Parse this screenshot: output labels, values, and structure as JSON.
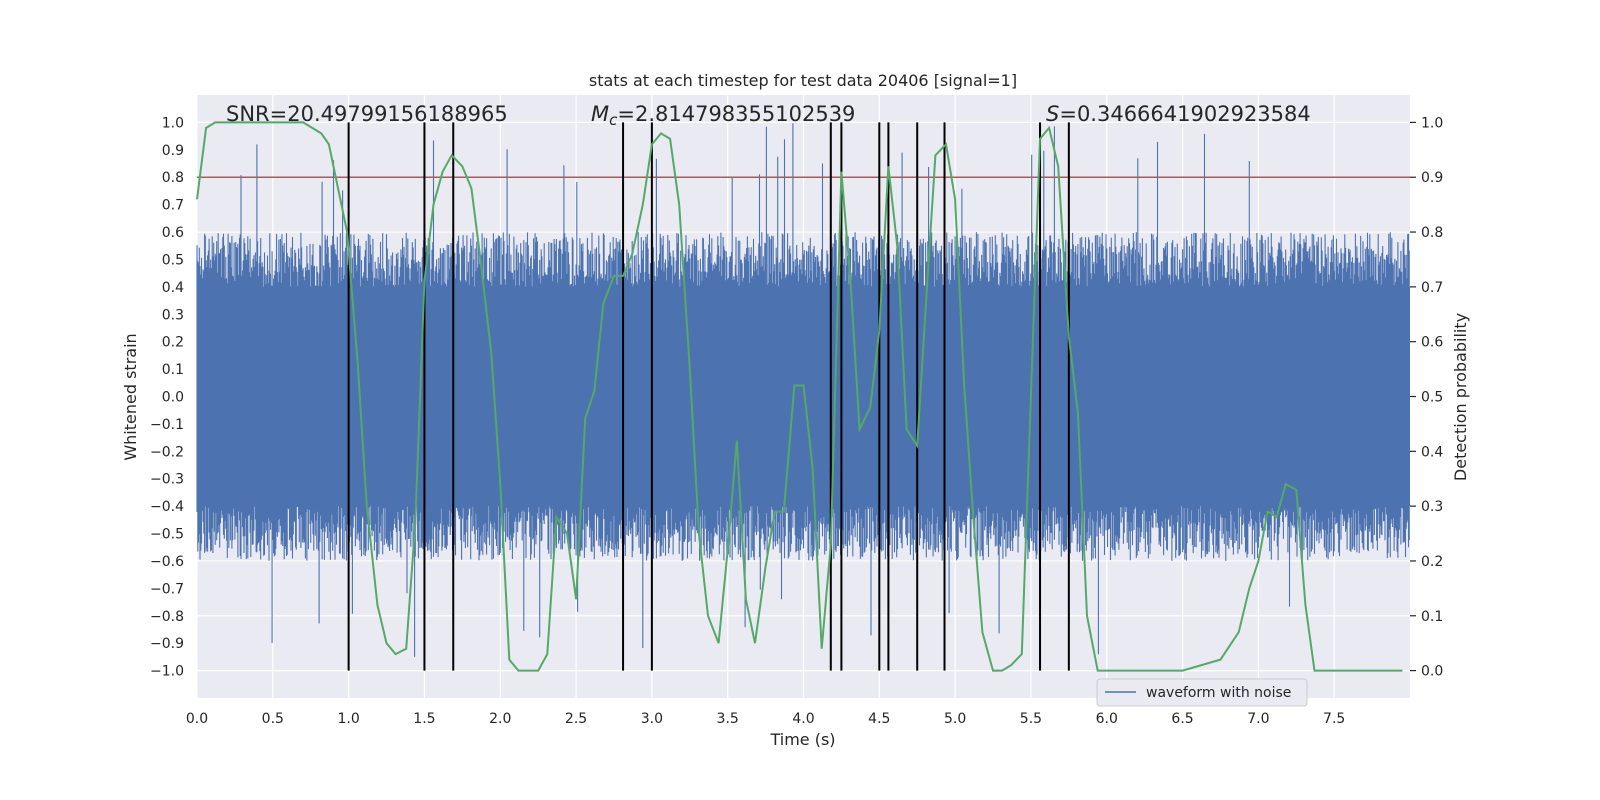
{
  "chart_data": {
    "type": "line",
    "title": "stats at each timestep for test data 20406 [signal=1]",
    "xlabel": "Time (s)",
    "ylabel_left": "Whitened strain",
    "ylabel_right": "Detection probability",
    "xlim": [
      0.0,
      8.0
    ],
    "ylim_left": [
      -1.1,
      1.1
    ],
    "ylim_right": [
      -0.05,
      1.05
    ],
    "x_ticks": [
      "0.0",
      "0.5",
      "1.0",
      "1.5",
      "2.0",
      "2.5",
      "3.0",
      "3.5",
      "4.0",
      "4.5",
      "5.0",
      "5.5",
      "6.0",
      "6.5",
      "7.0",
      "7.5"
    ],
    "y_ticks_left": [
      "1.0",
      "0.9",
      "0.8",
      "0.7",
      "0.6",
      "0.5",
      "0.4",
      "0.3",
      "0.2",
      "0.1",
      "0.0",
      "-0.1",
      "-0.2",
      "-0.3",
      "-0.4",
      "-0.5",
      "-0.6",
      "-0.7",
      "-0.8",
      "-0.9",
      "-1.0"
    ],
    "y_ticks_right": [
      "1.0",
      "0.9",
      "0.8",
      "0.7",
      "0.6",
      "0.5",
      "0.4",
      "0.3",
      "0.2",
      "0.1",
      "0.0"
    ],
    "grid": true,
    "annotations": {
      "snr": "SNR=20.49799156188965",
      "mc_symbol": "M",
      "mc_sub": "c",
      "mc_value": "=2.814798355102539",
      "s_symbol": "S",
      "s_value": "=0.3466641902923584"
    },
    "threshold": {
      "value_right": 0.9,
      "color": "#c44e52"
    },
    "vertical_lines": [
      1.0,
      1.5,
      1.69,
      2.81,
      3.0,
      4.18,
      4.25,
      4.5,
      4.56,
      4.75,
      4.93,
      5.56,
      5.75
    ],
    "vertical_line_range_left": [
      -1.0,
      1.0
    ],
    "waveform": {
      "name": "waveform with noise",
      "color": "#4c72b0",
      "dense_band": [
        -0.4,
        0.4
      ],
      "typical_peak": 0.6,
      "spike_max": 1.0,
      "spike_min": -0.98
    },
    "probability": {
      "color": "#55a868",
      "x": [
        0.0,
        0.06,
        0.12,
        0.2,
        0.3,
        0.4,
        0.5,
        0.6,
        0.7,
        0.76,
        0.82,
        0.87,
        0.93,
        0.99,
        1.06,
        1.12,
        1.19,
        1.25,
        1.31,
        1.38,
        1.44,
        1.5,
        1.56,
        1.62,
        1.68,
        1.75,
        1.81,
        1.87,
        1.94,
        2.0,
        2.06,
        2.12,
        2.25,
        2.31,
        2.37,
        2.44,
        2.5,
        2.56,
        2.62,
        2.68,
        2.75,
        2.81,
        2.87,
        2.94,
        3.0,
        3.06,
        3.12,
        3.18,
        3.25,
        3.31,
        3.37,
        3.44,
        3.5,
        3.56,
        3.62,
        3.68,
        3.75,
        3.81,
        3.87,
        3.94,
        4.0,
        4.06,
        4.12,
        4.18,
        4.25,
        4.31,
        4.37,
        4.44,
        4.5,
        4.56,
        4.62,
        4.68,
        4.75,
        4.81,
        4.87,
        4.94,
        5.0,
        5.06,
        5.12,
        5.18,
        5.25,
        5.31,
        5.37,
        5.44,
        5.5,
        5.56,
        5.62,
        5.68,
        5.75,
        5.81,
        5.87,
        5.94,
        6.0,
        6.06,
        6.12,
        6.25,
        6.5,
        6.75,
        6.87,
        6.94,
        7.0,
        7.06,
        7.12,
        7.18,
        7.25,
        7.31,
        7.37,
        7.44,
        7.5,
        7.56,
        7.62,
        7.75,
        7.87,
        7.95
      ],
      "y": [
        0.86,
        0.99,
        1.0,
        1.0,
        1.0,
        1.0,
        1.0,
        1.0,
        1.0,
        0.99,
        0.98,
        0.96,
        0.88,
        0.8,
        0.56,
        0.3,
        0.12,
        0.05,
        0.03,
        0.04,
        0.27,
        0.71,
        0.85,
        0.91,
        0.94,
        0.92,
        0.88,
        0.75,
        0.58,
        0.34,
        0.02,
        0.0,
        0.0,
        0.03,
        0.28,
        0.25,
        0.13,
        0.46,
        0.51,
        0.67,
        0.72,
        0.72,
        0.76,
        0.85,
        0.96,
        0.98,
        0.97,
        0.85,
        0.55,
        0.25,
        0.1,
        0.05,
        0.22,
        0.42,
        0.13,
        0.05,
        0.19,
        0.29,
        0.29,
        0.52,
        0.52,
        0.37,
        0.04,
        0.23,
        0.91,
        0.71,
        0.44,
        0.48,
        0.62,
        0.92,
        0.77,
        0.44,
        0.41,
        0.68,
        0.94,
        0.96,
        0.86,
        0.52,
        0.28,
        0.07,
        0.0,
        0.0,
        0.01,
        0.03,
        0.5,
        0.97,
        0.99,
        0.92,
        0.61,
        0.47,
        0.1,
        0.0,
        0.0,
        0.0,
        0.0,
        0.0,
        0.0,
        0.02,
        0.07,
        0.15,
        0.2,
        0.29,
        0.28,
        0.34,
        0.33,
        0.12,
        0.0,
        0.0,
        0.0,
        0.0,
        0.0,
        0.0,
        0.0,
        0.0
      ]
    }
  }
}
